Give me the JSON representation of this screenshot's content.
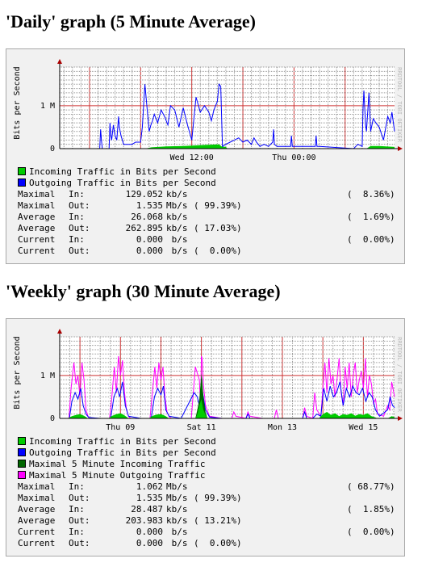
{
  "graphs": [
    {
      "title": "'Daily' graph (5 Minute Average)",
      "ylabel": "Bits per Second",
      "watermark": "RRDTOOL / TOBI OETIKER",
      "legend": [
        {
          "label": "Incoming Traffic in Bits per Second",
          "color": "#00cc00"
        },
        {
          "label": "Outgoing Traffic in Bits per Second",
          "color": "#0000ff"
        }
      ],
      "stats": [
        {
          "name": "Maximal",
          "dir": "In:",
          "value": "129.052",
          "unit": "kb/s",
          "pct_out": "",
          "pct_in": "(  8.36%)"
        },
        {
          "name": "Maximal",
          "dir": "Out:",
          "value": "1.535",
          "unit": "Mb/s",
          "pct_out": "( 99.39%)",
          "pct_in": ""
        },
        {
          "name": "Average",
          "dir": "In:",
          "value": "26.068",
          "unit": "kb/s",
          "pct_out": "",
          "pct_in": "(  1.69%)"
        },
        {
          "name": "Average",
          "dir": "Out:",
          "value": "262.895",
          "unit": "kb/s",
          "pct_out": "( 17.03%)",
          "pct_in": ""
        },
        {
          "name": "Current",
          "dir": "In:",
          "value": "0.000",
          "unit": " b/s",
          "pct_out": "",
          "pct_in": "(  0.00%)"
        },
        {
          "name": "Current",
          "dir": "Out:",
          "value": "0.000",
          "unit": " b/s",
          "pct_out": "(  0.00%)",
          "pct_in": ""
        }
      ]
    },
    {
      "title": "'Weekly' graph (30 Minute Average)",
      "ylabel": "Bits per Second",
      "watermark": "RRDTOOL / TOBI OETIKER",
      "legend": [
        {
          "label": "Incoming Traffic in Bits per Second",
          "color": "#00cc00"
        },
        {
          "label": "Outgoing Traffic in Bits per Second",
          "color": "#0000ff"
        },
        {
          "label": "Maximal 5 Minute Incoming Traffic",
          "color": "#006600"
        },
        {
          "label": "Maximal 5 Minute Outgoing Traffic",
          "color": "#ff00ff"
        }
      ],
      "stats": [
        {
          "name": "Maximal",
          "dir": "In:",
          "value": "1.062",
          "unit": "Mb/s",
          "pct_out": "",
          "pct_in": "( 68.77%)"
        },
        {
          "name": "Maximal",
          "dir": "Out:",
          "value": "1.535",
          "unit": "Mb/s",
          "pct_out": "( 99.39%)",
          "pct_in": ""
        },
        {
          "name": "Average",
          "dir": "In:",
          "value": "28.487",
          "unit": "kb/s",
          "pct_out": "",
          "pct_in": "(  1.85%)"
        },
        {
          "name": "Average",
          "dir": "Out:",
          "value": "203.983",
          "unit": "kb/s",
          "pct_out": "( 13.21%)",
          "pct_in": ""
        },
        {
          "name": "Current",
          "dir": "In:",
          "value": "0.000",
          "unit": " b/s",
          "pct_out": "",
          "pct_in": "(  0.00%)"
        },
        {
          "name": "Current",
          "dir": "Out:",
          "value": "0.000",
          "unit": " b/s",
          "pct_out": "(  0.00%)",
          "pct_in": ""
        }
      ]
    }
  ],
  "chart_data": [
    {
      "type": "area",
      "title": "'Daily' graph (5 Minute Average)",
      "ylabel": "Bits per Second",
      "ylim": [
        0,
        1.9
      ],
      "y_unit": "Mb/s",
      "y_ticks": [
        {
          "value": 0,
          "label": "0"
        },
        {
          "value": 1,
          "label": "1 M"
        }
      ],
      "x_ticks": [
        {
          "hour": 12,
          "label": "Wed 12:00"
        },
        {
          "hour": 24,
          "label": "Thu 00:00"
        }
      ],
      "x_hours_range": [
        -3.5,
        35.8
      ],
      "grid": true,
      "series": [
        {
          "name": "Incoming Traffic in Bits per Second",
          "kind": "area",
          "color": "#00cc00",
          "x_hours": [
            3.5,
            6.5,
            7.3,
            9,
            11,
            13,
            14,
            15.2,
            15.5,
            16,
            16.2,
            32.5,
            33,
            34,
            35.8
          ],
          "values": [
            0,
            0,
            0.03,
            0.05,
            0.06,
            0.08,
            0.09,
            0.1,
            0.05,
            0.04,
            0,
            0,
            0.06,
            0.06,
            0.04
          ]
        },
        {
          "name": "Outgoing Traffic in Bits per Second",
          "kind": "line",
          "color": "#0000ff",
          "x_hours": [
            -1,
            1.2,
            1.3,
            1.4,
            1.5,
            2.3,
            2.4,
            2.5,
            2.6,
            2.8,
            3.0,
            3.2,
            3.4,
            3.5,
            3.7,
            4.0,
            5.0,
            5.4,
            6.0,
            6.2,
            6.5,
            7.0,
            7.2,
            7.4,
            7.6,
            8.0,
            8.4,
            8.8,
            9.2,
            9.5,
            10.0,
            10.5,
            11.0,
            11.5,
            12.0,
            12.5,
            13.0,
            13.5,
            14.0,
            14.3,
            14.6,
            15.0,
            15.2,
            15.4,
            15.6,
            16.0,
            16.5,
            17.0,
            17.5,
            18.0,
            18.5,
            19.0,
            19.3,
            19.6,
            20.0,
            20.5,
            21.0,
            21.5,
            21.6,
            21.7,
            22.0,
            23.0,
            23.6,
            23.7,
            23.8,
            24.0,
            25.0,
            26.5,
            26.6,
            26.7,
            27.0,
            31.0,
            31.5,
            32.0,
            32.1,
            32.2,
            32.4,
            32.5,
            32.8,
            33.0,
            33.3,
            33.6,
            34.0,
            34.5,
            35.0,
            35.3,
            35.5,
            35.8
          ],
          "values": [
            0,
            0,
            0.45,
            0.2,
            0,
            0,
            0.6,
            0.3,
            0.2,
            0.55,
            0.3,
            0.2,
            0.75,
            0.5,
            0.3,
            0.1,
            0.1,
            0.15,
            0.15,
            0.5,
            1.5,
            0.4,
            0.55,
            0.65,
            0.8,
            0.6,
            0.9,
            0.75,
            0.55,
            1.0,
            0.9,
            0.5,
            0.95,
            0.55,
            0.2,
            1.2,
            0.85,
            1.0,
            0.85,
            0.65,
            0.9,
            1.1,
            1.5,
            1.45,
            0.05,
            0.1,
            0.15,
            0.2,
            0.25,
            0.15,
            0.2,
            0.1,
            0.25,
            0.15,
            0.05,
            0.1,
            0.05,
            0.15,
            0.45,
            0.1,
            0.05,
            0.05,
            0.05,
            0.3,
            0.05,
            0.05,
            0.05,
            0.05,
            0.3,
            0.05,
            0.05,
            0,
            0.1,
            0.05,
            0.9,
            1.35,
            0.55,
            0.4,
            1.3,
            0.4,
            0.7,
            0.6,
            0.5,
            0.2,
            0.75,
            0.6,
            0.85,
            0.4
          ]
        }
      ]
    },
    {
      "type": "area",
      "title": "'Weekly' graph (30 Minute Average)",
      "ylabel": "Bits per Second",
      "ylim": [
        0,
        1.9
      ],
      "y_unit": "Mb/s",
      "y_ticks": [
        {
          "value": 0,
          "label": "0"
        },
        {
          "value": 1,
          "label": "1 M"
        }
      ],
      "x_ticks": [
        {
          "day": 1,
          "label": "Thu 09"
        },
        {
          "day": 3,
          "label": "Sat 11"
        },
        {
          "day": 5,
          "label": "Mon 13"
        },
        {
          "day": 7,
          "label": "Wed 15"
        }
      ],
      "x_days_range": [
        -0.5,
        7.77
      ],
      "grid": true,
      "series": [
        {
          "name": "Maximal 5 Minute Outgoing Traffic",
          "kind": "line",
          "color": "#ff00ff",
          "x_days": [
            -0.5,
            -0.27,
            -0.22,
            -0.15,
            -0.1,
            -0.05,
            0.0,
            0.05,
            0.1,
            0.15,
            0.2,
            0.25,
            0.5,
            0.73,
            0.78,
            0.85,
            0.9,
            0.95,
            1.0,
            1.05,
            1.1,
            1.15,
            1.2,
            1.25,
            1.5,
            1.73,
            1.78,
            1.85,
            1.9,
            1.95,
            2.0,
            2.05,
            2.1,
            2.15,
            2.2,
            2.25,
            2.5,
            2.75,
            2.85,
            2.95,
            2.98,
            3.0,
            3.02,
            3.05,
            3.1,
            3.2,
            3.5,
            3.75,
            3.8,
            3.85,
            4.1,
            4.15,
            4.2,
            4.5,
            4.8,
            4.85,
            4.9,
            5.5,
            5.55,
            5.6,
            5.75,
            5.8,
            5.85,
            5.95,
            6.0,
            6.05,
            6.1,
            6.15,
            6.2,
            6.25,
            6.3,
            6.35,
            6.4,
            6.45,
            6.5,
            6.55,
            6.6,
            6.65,
            6.7,
            6.75,
            6.8,
            6.85,
            6.9,
            6.95,
            7.0,
            7.05,
            7.1,
            7.15,
            7.2,
            7.25,
            7.3,
            7.35,
            7.5,
            7.6,
            7.65,
            7.7,
            7.77
          ],
          "values": [
            0,
            0,
            0.7,
            1.3,
            0.8,
            1.0,
            0.5,
            1.3,
            0.9,
            0.2,
            0.05,
            0,
            0,
            0,
            0.4,
            1.2,
            0.6,
            1.45,
            1.0,
            1.35,
            0.6,
            0.2,
            0.05,
            0,
            0,
            0,
            0.5,
            1.2,
            0.7,
            1.3,
            0.9,
            1.2,
            0.5,
            0.15,
            0.05,
            0,
            0,
            0,
            1.2,
            0.9,
            0.3,
            1.45,
            1.4,
            0.8,
            0.3,
            0.05,
            0,
            0,
            0.15,
            0.05,
            0,
            0.15,
            0.05,
            0,
            0,
            0.2,
            0,
            0,
            0.25,
            0.05,
            0,
            0.6,
            0.2,
            0.05,
            0.7,
            1.3,
            0.6,
            1.4,
            0.8,
            1.0,
            0.5,
            0.9,
            1.4,
            0.6,
            0.3,
            1.2,
            0.7,
            1.3,
            0.5,
            1.0,
            1.3,
            0.6,
            0.9,
            1.1,
            0.7,
            1.4,
            0.5,
            1.0,
            0.8,
            0.35,
            0.45,
            0.1,
            0.05,
            0.3,
            0.2,
            0.85,
            0.5
          ]
        },
        {
          "name": "Outgoing Traffic in Bits per Second",
          "kind": "line",
          "color": "#0000ff",
          "x_days": [
            -0.5,
            -0.26,
            -0.2,
            -0.12,
            -0.05,
            0.02,
            0.08,
            0.15,
            0.22,
            0.5,
            0.76,
            0.84,
            0.92,
            0.98,
            1.05,
            1.12,
            1.2,
            1.5,
            1.76,
            1.84,
            1.92,
            2.0,
            2.06,
            2.12,
            2.2,
            2.5,
            2.82,
            2.9,
            2.97,
            3.0,
            3.03,
            3.1,
            3.2,
            3.5,
            4.1,
            4.15,
            4.2,
            5.5,
            5.55,
            5.6,
            5.75,
            5.85,
            5.95,
            6.02,
            6.1,
            6.18,
            6.26,
            6.34,
            6.42,
            6.5,
            6.58,
            6.66,
            6.74,
            6.82,
            6.9,
            6.98,
            7.06,
            7.14,
            7.22,
            7.3,
            7.4,
            7.6,
            7.66,
            7.72,
            7.77
          ],
          "values": [
            0,
            0,
            0.4,
            0.6,
            0.45,
            0.7,
            0.3,
            0.1,
            0.02,
            0,
            0,
            0.5,
            0.7,
            0.5,
            0.85,
            0.3,
            0.05,
            0,
            0,
            0.5,
            0.7,
            0.55,
            0.75,
            0.2,
            0.05,
            0,
            0.6,
            0.5,
            0.2,
            0.8,
            0.6,
            0.2,
            0.03,
            0,
            0,
            0.1,
            0,
            0,
            0.15,
            0,
            0,
            0.1,
            0.05,
            0.7,
            0.4,
            0.75,
            0.5,
            0.6,
            0.85,
            0.3,
            0.7,
            0.5,
            0.75,
            0.6,
            0.55,
            0.7,
            0.4,
            0.6,
            0.5,
            0.2,
            0.05,
            0.2,
            0.5,
            0.3,
            0.25
          ]
        },
        {
          "name": "Maximal 5 Minute Incoming Traffic",
          "kind": "area",
          "color": "#006600",
          "x_days": [
            2.85,
            2.9,
            2.95,
            3.0,
            3.02,
            3.05,
            3.1,
            3.15
          ],
          "values": [
            0,
            0.2,
            0.45,
            1.05,
            0.9,
            0.5,
            0.15,
            0
          ]
        },
        {
          "name": "Incoming Traffic in Bits per Second",
          "kind": "area",
          "color": "#00cc00",
          "x_days": [
            -0.3,
            -0.2,
            -0.1,
            0.0,
            0.1,
            0.2,
            0.7,
            0.8,
            0.9,
            1.0,
            1.1,
            1.2,
            1.7,
            1.8,
            1.9,
            2.0,
            2.1,
            2.2,
            2.85,
            2.9,
            2.95,
            3.0,
            3.05,
            3.1,
            3.15,
            5.9,
            6.0,
            6.1,
            6.2,
            6.3,
            6.4,
            6.5,
            6.6,
            6.7,
            6.8,
            6.9,
            7.0,
            7.1,
            7.2,
            7.3,
            7.35,
            7.6,
            7.7,
            7.77
          ],
          "values": [
            0,
            0.05,
            0.08,
            0.1,
            0.06,
            0,
            0,
            0.06,
            0.1,
            0.12,
            0.07,
            0,
            0,
            0.06,
            0.09,
            0.1,
            0.06,
            0,
            0,
            0.1,
            0.3,
            0.45,
            0.2,
            0.08,
            0,
            0,
            0.1,
            0.15,
            0.08,
            0.12,
            0.05,
            0.1,
            0.08,
            0.12,
            0.06,
            0.1,
            0.08,
            0.12,
            0.05,
            0.02,
            0,
            0,
            0.05,
            0.03
          ]
        }
      ]
    }
  ]
}
